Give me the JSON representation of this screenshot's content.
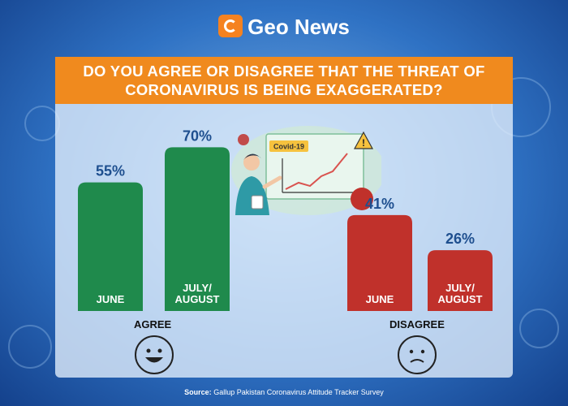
{
  "brand": {
    "name": "Geo News"
  },
  "question": "DO YOU AGREE OR DISAGREE THAT THE THREAT OF CORONAVIRUS IS BEING EXAGGERATED?",
  "illustration": {
    "board_label": "Covid-19"
  },
  "source": {
    "label": "Source:",
    "text": "Gallup Pakistan Coronavirus Attitude Tracker Survey"
  },
  "colors": {
    "agree": "#1f8a4c",
    "disagree": "#c0312b",
    "banner": "#f08a1e"
  },
  "chart_data": {
    "type": "bar",
    "title": "DO YOU AGREE OR DISAGREE THAT THE THREAT OF CORONAVIRUS IS BEING EXAGGERATED?",
    "groups": [
      {
        "name": "AGREE",
        "face": "smile",
        "bars": [
          {
            "category": "JUNE",
            "value": 55,
            "label": "55%"
          },
          {
            "category": "JULY/ AUGUST",
            "value": 70,
            "label": "70%"
          }
        ]
      },
      {
        "name": "DISAGREE",
        "face": "sad",
        "bars": [
          {
            "category": "JUNE",
            "value": 41,
            "label": "41%"
          },
          {
            "category": "JULY/ AUGUST",
            "value": 26,
            "label": "26%"
          }
        ]
      }
    ],
    "ylim": [
      0,
      100
    ]
  }
}
